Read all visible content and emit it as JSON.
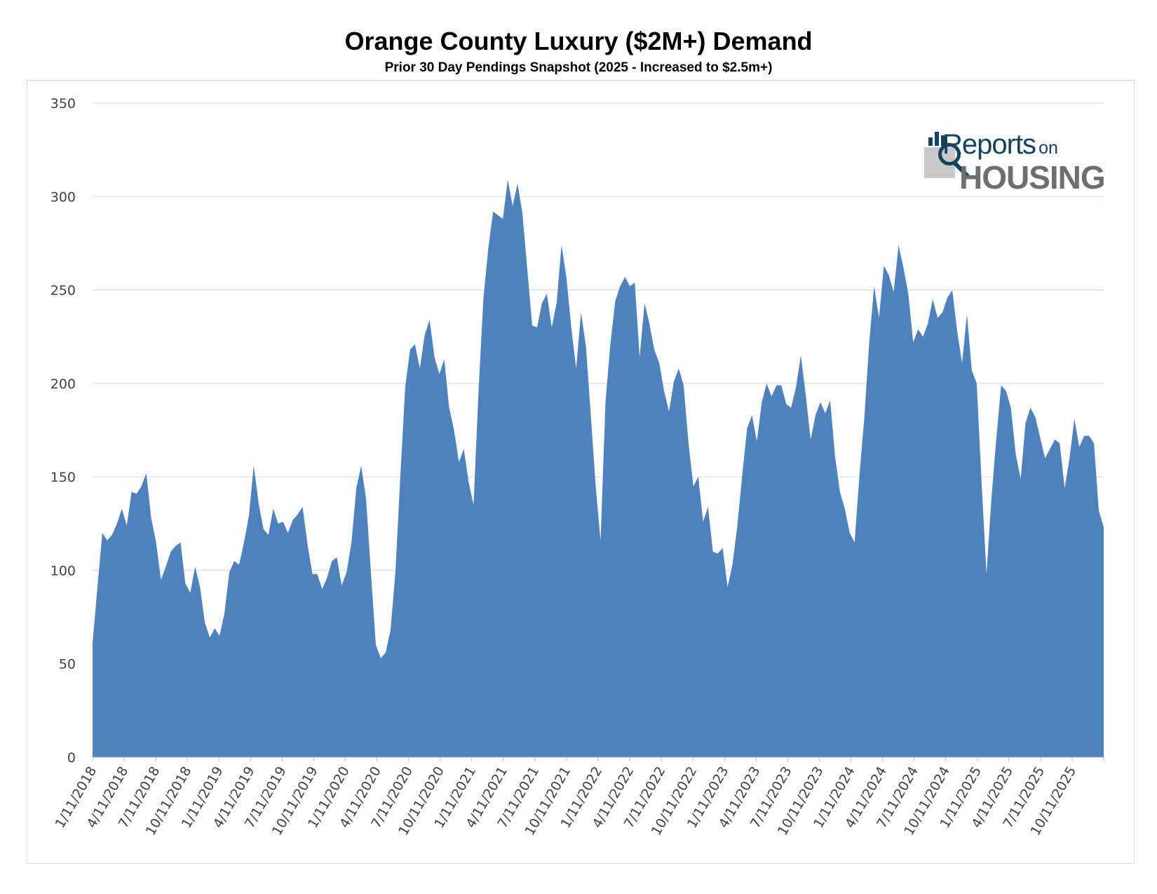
{
  "chart_data": {
    "type": "area",
    "title": "Orange County Luxury ($2M+) Demand",
    "subtitle": "Prior 30 Day Pendings Snapshot (2025 - Increased to $2.5m+)",
    "xlabel": "",
    "ylabel": "",
    "ylim": [
      0,
      350
    ],
    "yticks": [
      0,
      50,
      100,
      150,
      200,
      250,
      300,
      350
    ],
    "grid": true,
    "fill_color": "#4f81bd",
    "x_tick_labels": [
      "1/11/2018",
      "4/11/2018",
      "7/11/2018",
      "10/11/2018",
      "1/11/2019",
      "4/11/2019",
      "7/11/2019",
      "10/11/2019",
      "1/11/2020",
      "4/11/2020",
      "7/11/2020",
      "10/11/2020",
      "1/11/2021",
      "4/11/2021",
      "7/11/2021",
      "10/11/2021",
      "1/11/2022",
      "4/11/2022",
      "7/11/2022",
      "10/11/2022",
      "1/11/2023",
      "4/11/2023",
      "7/11/2023",
      "10/11/2023",
      "1/11/2024",
      "4/11/2024",
      "7/11/2024",
      "10/11/2024",
      "1/11/2025",
      "4/11/2025",
      "7/11/2025",
      "10/11/2025"
    ],
    "values": [
      61,
      91,
      120,
      116,
      119,
      125,
      133,
      124,
      142,
      141,
      145,
      152,
      128,
      115,
      95,
      102,
      110,
      113,
      115,
      93,
      88,
      102,
      91,
      72,
      64,
      69,
      65,
      77,
      99,
      105,
      103,
      115,
      129,
      156,
      136,
      122,
      119,
      133,
      125,
      126,
      120,
      127,
      130,
      134,
      114,
      98,
      98,
      90,
      96,
      105,
      107,
      92,
      99,
      115,
      144,
      156,
      138,
      98,
      60,
      53,
      56,
      68,
      99,
      150,
      198,
      218,
      221,
      208,
      226,
      234,
      214,
      205,
      213,
      187,
      175,
      158,
      165,
      147,
      135,
      195,
      245,
      272,
      292,
      290,
      288,
      309,
      295,
      307,
      291,
      261,
      231,
      230,
      243,
      248,
      230,
      243,
      274,
      257,
      230,
      208,
      238,
      220,
      183,
      145,
      116,
      190,
      221,
      244,
      252,
      257,
      252,
      254,
      214,
      243,
      232,
      218,
      211,
      196,
      185,
      201,
      208,
      199,
      168,
      145,
      150,
      126,
      134,
      110,
      109,
      112,
      91,
      103,
      124,
      151,
      176,
      183,
      169,
      190,
      200,
      193,
      199,
      199,
      189,
      187,
      198,
      215,
      194,
      170,
      183,
      190,
      184,
      191,
      161,
      142,
      133,
      120,
      115,
      151,
      182,
      222,
      252,
      235,
      263,
      258,
      249,
      274,
      262,
      248,
      222,
      229,
      225,
      232,
      245,
      235,
      238,
      246,
      250,
      228,
      211,
      237,
      207,
      200,
      147,
      98,
      138,
      170,
      199,
      196,
      187,
      162,
      149,
      179,
      187,
      182,
      171,
      160,
      165,
      170,
      168,
      144,
      160,
      181,
      166,
      172,
      172,
      168,
      132,
      123
    ]
  },
  "logo": {
    "text_top": "Reports",
    "text_on": "on",
    "text_bottom": "HOUSING"
  }
}
